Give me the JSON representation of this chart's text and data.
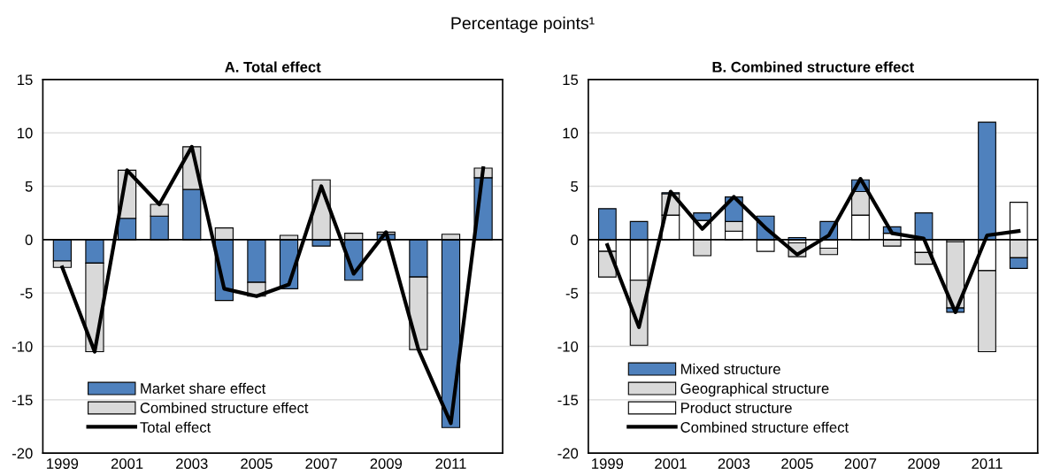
{
  "chart_data": [
    {
      "type": "bar",
      "title": "A. Total effect",
      "annotations": [
        "Percentage points¹"
      ],
      "categories": [
        "1999",
        null,
        "2001",
        null,
        "2003",
        null,
        "2005",
        null,
        "2007",
        null,
        "2009",
        null,
        "2011",
        null
      ],
      "stacked": true,
      "ylim": [
        -20,
        15
      ],
      "yticks": [
        -20,
        -15,
        -10,
        -5,
        0,
        5,
        10,
        15
      ],
      "grid": "y",
      "legend": "bottom left",
      "series": [
        {
          "name": "Market share effect",
          "color": "#4f81bd",
          "values": [
            -2.0,
            -2.2,
            2.0,
            2.2,
            4.7,
            -5.7,
            -4.0,
            -4.6,
            -0.6,
            -3.8,
            0.5,
            -3.5,
            -17.6,
            5.8
          ]
        },
        {
          "name": "Combined structure effect",
          "color": "#d9d9d9",
          "values": [
            -0.6,
            -8.3,
            4.5,
            1.1,
            4.0,
            1.1,
            -1.3,
            0.4,
            5.6,
            0.6,
            0.2,
            -6.8,
            0.5,
            0.9
          ]
        },
        {
          "name": "Total effect",
          "type": "line",
          "color": "#000000",
          "values": [
            -2.6,
            -10.5,
            6.5,
            3.3,
            8.7,
            -4.6,
            -5.3,
            -4.2,
            5.0,
            -3.2,
            0.7,
            -10.3,
            -17.2,
            6.7
          ]
        }
      ]
    },
    {
      "type": "bar",
      "title": "B. Combined structure effect",
      "categories": [
        "1999",
        null,
        "2001",
        null,
        "2003",
        null,
        "2005",
        null,
        "2007",
        null,
        "2009",
        null,
        "2011",
        null
      ],
      "stacked": true,
      "ylim": [
        -20,
        15
      ],
      "yticks": [
        -20,
        -15,
        -10,
        -5,
        0,
        5,
        10,
        15
      ],
      "grid": "y",
      "legend": "bottom left",
      "series": [
        {
          "name": "Product structure",
          "color": "#ffffff",
          "values": [
            -1.1,
            -3.8,
            2.3,
            1.8,
            0.8,
            -1.1,
            -0.3,
            -0.8,
            2.3,
            0.6,
            -1.2,
            -0.2,
            -2.9,
            3.5
          ]
        },
        {
          "name": "Geographical structure",
          "color": "#d9d9d9",
          "values": [
            -2.4,
            -6.1,
            2.0,
            -1.5,
            0.9,
            null,
            -1.3,
            -0.6,
            2.2,
            -0.6,
            -1.1,
            -6.2,
            -7.6,
            -1.7
          ]
        },
        {
          "name": "Mixed structure",
          "color": "#4f81bd",
          "values": [
            2.9,
            1.7,
            0.1,
            0.7,
            2.3,
            2.2,
            0.2,
            1.7,
            1.1,
            0.6,
            2.5,
            -0.4,
            11.0,
            -1.0
          ]
        },
        {
          "name": "Combined structure effect",
          "type": "line",
          "color": "#000000",
          "values": [
            -0.5,
            -8.2,
            4.5,
            1.0,
            4.0,
            1.1,
            -1.4,
            0.4,
            5.7,
            0.6,
            0.1,
            -6.8,
            0.4,
            0.8
          ]
        }
      ]
    }
  ]
}
